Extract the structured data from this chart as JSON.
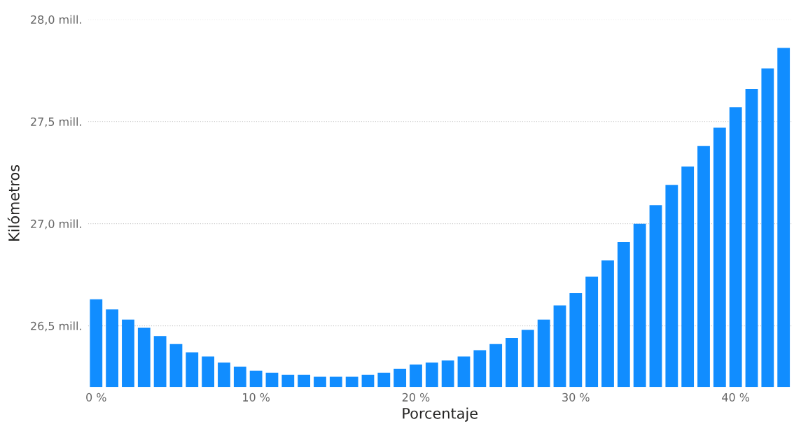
{
  "chart_data": {
    "type": "bar",
    "xlabel": "Porcentaje",
    "ylabel": "Kilómetros",
    "color": "#118dff",
    "x": [
      0,
      1,
      2,
      3,
      4,
      5,
      6,
      7,
      8,
      9,
      10,
      11,
      12,
      13,
      14,
      15,
      16,
      17,
      18,
      19,
      20,
      21,
      22,
      23,
      24,
      25,
      26,
      27,
      28,
      29,
      30,
      31,
      32,
      33,
      34,
      35,
      36,
      37,
      38,
      39,
      40,
      41,
      42,
      43
    ],
    "values": [
      26.63,
      26.58,
      26.53,
      26.49,
      26.45,
      26.41,
      26.37,
      26.35,
      26.32,
      26.3,
      26.28,
      26.27,
      26.26,
      26.26,
      26.25,
      26.25,
      26.25,
      26.26,
      26.27,
      26.29,
      26.31,
      26.32,
      26.33,
      26.35,
      26.38,
      26.41,
      26.44,
      26.48,
      26.53,
      26.6,
      26.66,
      26.74,
      26.82,
      26.91,
      27.0,
      27.09,
      27.19,
      27.28,
      27.38,
      27.47,
      27.57,
      27.66,
      27.76,
      27.86
    ],
    "xlim": [
      -0.5,
      43.5
    ],
    "xticks": [
      {
        "value": 0,
        "label": "0 %"
      },
      {
        "value": 10,
        "label": "10 %"
      },
      {
        "value": 20,
        "label": "20 %"
      },
      {
        "value": 30,
        "label": "30 %"
      },
      {
        "value": 40,
        "label": "40 %"
      }
    ],
    "ylim": [
      26.2,
      28.0
    ],
    "yticks": [
      {
        "value": 26.5,
        "label": "26,5 mill."
      },
      {
        "value": 27.0,
        "label": "27,0 mill."
      },
      {
        "value": 27.5,
        "label": "27,5 mill."
      },
      {
        "value": 28.0,
        "label": "28,0 mill."
      }
    ],
    "grid": "y"
  }
}
